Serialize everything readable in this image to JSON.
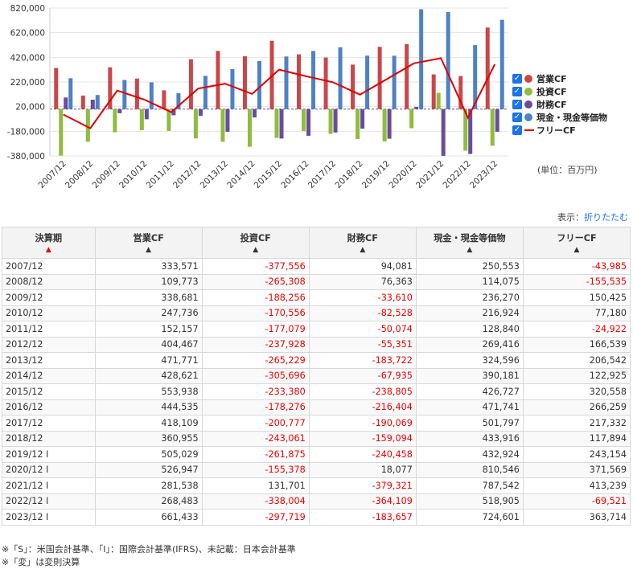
{
  "chart_data": {
    "type": "bar+line",
    "categories": [
      "2007/12",
      "2008/12",
      "2009/12",
      "2010/12",
      "2011/12",
      "2012/12",
      "2013/12",
      "2014/12",
      "2015/12",
      "2016/12",
      "2017/12",
      "2018/12",
      "2019/12",
      "2020/12",
      "2021/12",
      "2022/12",
      "2023/12"
    ],
    "series": [
      {
        "name": "営業CF",
        "type": "bar",
        "color": "#c9474a",
        "values": [
          333571,
          109773,
          338681,
          247736,
          152157,
          404467,
          471771,
          428621,
          553938,
          444535,
          418109,
          360955,
          505029,
          526947,
          281538,
          268483,
          661433
        ]
      },
      {
        "name": "投資CF",
        "type": "bar",
        "color": "#8fbc3e",
        "values": [
          -377556,
          -265308,
          -188256,
          -170556,
          -177079,
          -237928,
          -265229,
          -305696,
          -233380,
          -178276,
          -200777,
          -243061,
          -261875,
          -155378,
          131701,
          -338004,
          -297719
        ]
      },
      {
        "name": "財務CF",
        "type": "bar",
        "color": "#6a4c9c",
        "values": [
          94081,
          76363,
          -33610,
          -82528,
          -50074,
          -55351,
          -183722,
          -67935,
          -238805,
          -216404,
          -190069,
          -159094,
          -240458,
          18077,
          -379321,
          -364109,
          -183657
        ]
      },
      {
        "name": "現金・現金等価物",
        "type": "bar",
        "color": "#4f81c4",
        "values": [
          250553,
          114075,
          236270,
          216924,
          128840,
          269416,
          324596,
          390181,
          426727,
          471741,
          501797,
          433916,
          432924,
          810546,
          787542,
          518905,
          724601
        ]
      },
      {
        "name": "フリーCF",
        "type": "line",
        "color": "#e00000",
        "values": [
          -43985,
          -155535,
          150425,
          77180,
          -24922,
          166539,
          206542,
          122925,
          320558,
          266259,
          217332,
          117894,
          243154,
          371569,
          413239,
          -69521,
          363714
        ]
      }
    ],
    "y_ticks": [
      "820,000",
      "620,000",
      "420,000",
      "220,000",
      "20,000",
      "-180,000",
      "-380,000"
    ],
    "y_tick_values": [
      820000,
      620000,
      420000,
      220000,
      20000,
      -180000,
      -380000
    ],
    "ylim": [
      -380000,
      820000
    ],
    "unit_label": "(単位：百万円)"
  },
  "legend": [
    {
      "label": "営業CF",
      "color": "#c9474a",
      "kind": "dot"
    },
    {
      "label": "投資CF",
      "color": "#8fbc3e",
      "kind": "dot"
    },
    {
      "label": "財務CF",
      "color": "#6a4c9c",
      "kind": "dot"
    },
    {
      "label": "現金・現金等価物",
      "color": "#4f81c4",
      "kind": "dot"
    },
    {
      "label": "フリーCF",
      "color": "#e00000",
      "kind": "line"
    }
  ],
  "display": {
    "prefix": "表示：",
    "link": "折りたたむ"
  },
  "table": {
    "headers": [
      "決算期",
      "営業CF",
      "投資CF",
      "財務CF",
      "現金・現金等価物",
      "フリーCF"
    ],
    "rows": [
      [
        "2007/12",
        "333,571",
        "-377,556",
        "94,081",
        "250,553",
        "-43,985"
      ],
      [
        "2008/12",
        "109,773",
        "-265,308",
        "76,363",
        "114,075",
        "-155,535"
      ],
      [
        "2009/12",
        "338,681",
        "-188,256",
        "-33,610",
        "236,270",
        "150,425"
      ],
      [
        "2010/12",
        "247,736",
        "-170,556",
        "-82,528",
        "216,924",
        "77,180"
      ],
      [
        "2011/12",
        "152,157",
        "-177,079",
        "-50,074",
        "128,840",
        "-24,922"
      ],
      [
        "2012/12",
        "404,467",
        "-237,928",
        "-55,351",
        "269,416",
        "166,539"
      ],
      [
        "2013/12",
        "471,771",
        "-265,229",
        "-183,722",
        "324,596",
        "206,542"
      ],
      [
        "2014/12",
        "428,621",
        "-305,696",
        "-67,935",
        "390,181",
        "122,925"
      ],
      [
        "2015/12",
        "553,938",
        "-233,380",
        "-238,805",
        "426,727",
        "320,558"
      ],
      [
        "2016/12",
        "444,535",
        "-178,276",
        "-216,404",
        "471,741",
        "266,259"
      ],
      [
        "2017/12",
        "418,109",
        "-200,777",
        "-190,069",
        "501,797",
        "217,332"
      ],
      [
        "2018/12",
        "360,955",
        "-243,061",
        "-159,094",
        "433,916",
        "117,894"
      ],
      [
        "2019/12 I",
        "505,029",
        "-261,875",
        "-240,458",
        "432,924",
        "243,154"
      ],
      [
        "2020/12 I",
        "526,947",
        "-155,378",
        "18,077",
        "810,546",
        "371,569"
      ],
      [
        "2021/12 I",
        "281,538",
        "131,701",
        "-379,321",
        "787,542",
        "413,239"
      ],
      [
        "2022/12 I",
        "268,483",
        "-338,004",
        "-364,109",
        "518,905",
        "-69,521"
      ],
      [
        "2023/12 I",
        "661,433",
        "-297,719",
        "-183,657",
        "724,601",
        "363,714"
      ]
    ]
  },
  "notes": [
    "※「S」：米国会計基準、「I」：国際会計基準(IFRS)、未記載：日本会計基準",
    "※「変」は変則決算"
  ]
}
